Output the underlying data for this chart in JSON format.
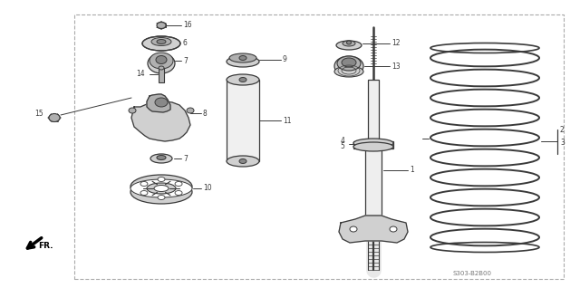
{
  "bg_color": "#ffffff",
  "border_color": "#999999",
  "line_color": "#3a3a3a",
  "gray1": "#d0d0d0",
  "gray2": "#b0b0b0",
  "gray3": "#888888",
  "diagram_code": "S303-B2B00",
  "figsize": [
    6.4,
    3.18
  ],
  "dpi": 100
}
